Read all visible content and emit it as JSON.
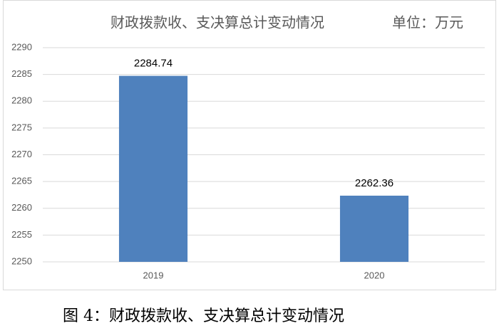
{
  "chart_data": {
    "type": "bar",
    "title": "财政拨款收、支决算总计变动情况",
    "unit": "单位：万元",
    "categories": [
      "2019",
      "2020"
    ],
    "values": [
      2284.74,
      2262.36
    ],
    "color": "#4f81bd",
    "ylim": [
      2250,
      2290
    ],
    "yticks": [
      2250,
      2255,
      2260,
      2265,
      2270,
      2275,
      2280,
      2285,
      2290
    ],
    "grid": true,
    "data_labels": true
  },
  "caption": "图 4：财政拨款收、支决算总计变动情况"
}
